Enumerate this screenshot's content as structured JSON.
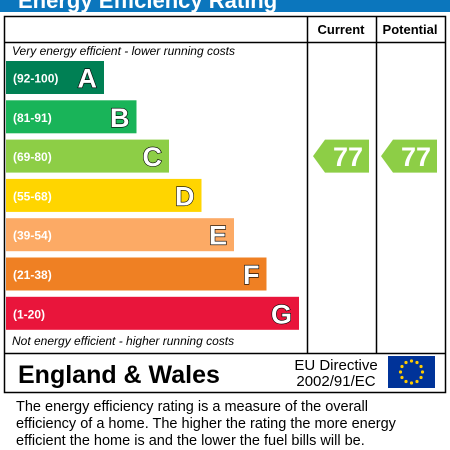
{
  "title": "Energy Efficiency Rating",
  "headers": {
    "current": "Current",
    "potential": "Potential"
  },
  "top_note": "Very energy efficient - lower running costs",
  "bottom_note": "Not energy efficient - higher running costs",
  "chart_data": {
    "type": "bar",
    "bands": [
      {
        "letter": "A",
        "range": "(92-100)",
        "color": "#008054"
      },
      {
        "letter": "B",
        "range": "(81-91)",
        "color": "#19b459"
      },
      {
        "letter": "C",
        "range": "(69-80)",
        "color": "#8dce46"
      },
      {
        "letter": "D",
        "range": "(55-68)",
        "color": "#ffd500"
      },
      {
        "letter": "E",
        "range": "(39-54)",
        "color": "#fcaa65"
      },
      {
        "letter": "F",
        "range": "(21-38)",
        "color": "#ef8023"
      },
      {
        "letter": "G",
        "range": "(1-20)",
        "color": "#e9153b"
      }
    ],
    "current": {
      "value": 77,
      "band": "C",
      "color": "#8dce46"
    },
    "potential": {
      "value": 77,
      "band": "C",
      "color": "#8dce46"
    }
  },
  "footer": {
    "region": "England & Wales",
    "directive_line1": "EU Directive",
    "directive_line2": "2002/91/EC",
    "flag_color": "#003399",
    "star_color": "#ffcc00"
  },
  "description": [
    "The energy efficiency rating is a measure of the overall",
    "efficiency of a home.  The higher the rating the more energy",
    "efficient the home is and the lower the fuel bills will be."
  ]
}
